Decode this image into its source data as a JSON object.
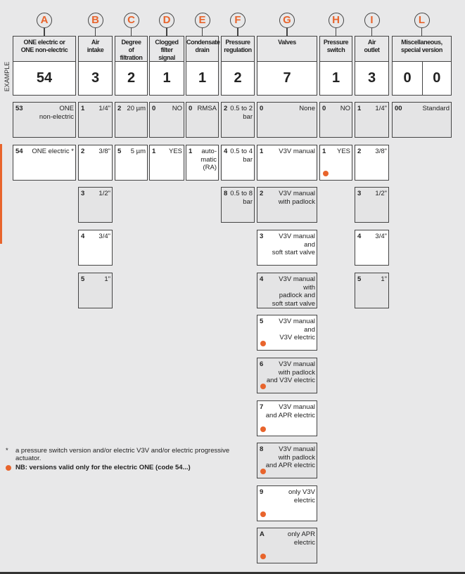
{
  "example_label": "EXAMPLE",
  "accent_color": "#e8642c",
  "columns": [
    {
      "letter": "A",
      "header": "ONE electric or\nONE non-electric",
      "example": [
        "54"
      ],
      "options": [
        {
          "code": "53",
          "label": "ONE\nnon-electric"
        },
        {
          "code": "54",
          "label": "ONE electric *"
        }
      ]
    },
    {
      "letter": "B",
      "header": "Air\nintake",
      "example": [
        "3"
      ],
      "options": [
        {
          "code": "1",
          "label": "1/4\""
        },
        {
          "code": "2",
          "label": "3/8\""
        },
        {
          "code": "3",
          "label": "1/2\""
        },
        {
          "code": "4",
          "label": "3/4\""
        },
        {
          "code": "5",
          "label": "1\""
        }
      ]
    },
    {
      "letter": "C",
      "header": "Degree\nof\nfiltration",
      "example": [
        "2"
      ],
      "options": [
        {
          "code": "2",
          "label": "20 µm"
        },
        {
          "code": "5",
          "label": "5 µm"
        }
      ]
    },
    {
      "letter": "D",
      "header": "Clogged\nfilter\nsignal",
      "example": [
        "1"
      ],
      "options": [
        {
          "code": "0",
          "label": "NO"
        },
        {
          "code": "1",
          "label": "YES"
        }
      ]
    },
    {
      "letter": "E",
      "header": "Condensate\ndrain",
      "example": [
        "1"
      ],
      "options": [
        {
          "code": "0",
          "label": "RMSA"
        },
        {
          "code": "1",
          "label": "auto-\nmatic\n(RA)"
        }
      ]
    },
    {
      "letter": "F",
      "header": "Pressure\nregulation",
      "example": [
        "2"
      ],
      "options": [
        {
          "code": "2",
          "label": "0.5 to 2\nbar"
        },
        {
          "code": "4",
          "label": "0.5 to 4\nbar"
        },
        {
          "code": "8",
          "label": "0.5 to 8\nbar"
        }
      ]
    },
    {
      "letter": "G",
      "header": "Valves",
      "example": [
        "7"
      ],
      "options": [
        {
          "code": "0",
          "label": "None"
        },
        {
          "code": "1",
          "label": "V3V manual"
        },
        {
          "code": "2",
          "label": "V3V manual\nwith padlock"
        },
        {
          "code": "3",
          "label": "V3V manual\nand\nsoft start valve"
        },
        {
          "code": "4",
          "label": "V3V manual\nwith\npadlock and\nsoft start valve"
        },
        {
          "code": "5",
          "label": "V3V manual\nand\nV3V electric",
          "dot": true
        },
        {
          "code": "6",
          "label": "V3V manual\nwith padlock\nand V3V electric",
          "dot": true
        },
        {
          "code": "7",
          "label": "V3V manual\nand APR electric",
          "dot": true
        },
        {
          "code": "8",
          "label": "V3V manual\nwith padlock\nand APR electric",
          "dot": true
        },
        {
          "code": "9",
          "label": "only V3V\nelectric",
          "dot": true
        },
        {
          "code": "A",
          "label": "only APR\nelectric",
          "dot": true
        }
      ]
    },
    {
      "letter": "H",
      "header": "Pressure\nswitch",
      "example": [
        "1"
      ],
      "options": [
        {
          "code": "0",
          "label": "NO"
        },
        {
          "code": "1",
          "label": "YES",
          "dot": true
        }
      ]
    },
    {
      "letter": "I",
      "header": "Air\noutlet",
      "example": [
        "3"
      ],
      "options": [
        {
          "code": "1",
          "label": "1/4\""
        },
        {
          "code": "2",
          "label": "3/8\""
        },
        {
          "code": "3",
          "label": "1/2\""
        },
        {
          "code": "4",
          "label": "3/4\""
        },
        {
          "code": "5",
          "label": "1\""
        }
      ]
    },
    {
      "letter": "L",
      "header": "Miscellaneous,\nspecial version",
      "example": [
        "0",
        "0"
      ],
      "options": [
        {
          "code": "00",
          "label": "Standard"
        }
      ]
    }
  ],
  "notes": {
    "asterisk_mark": "*",
    "asterisk_text": "a pressure switch version and/or electric V3V and/or electric progressive actuator.",
    "dot_text": "NB: versions valid only for the electric ONE (code 54...)"
  }
}
